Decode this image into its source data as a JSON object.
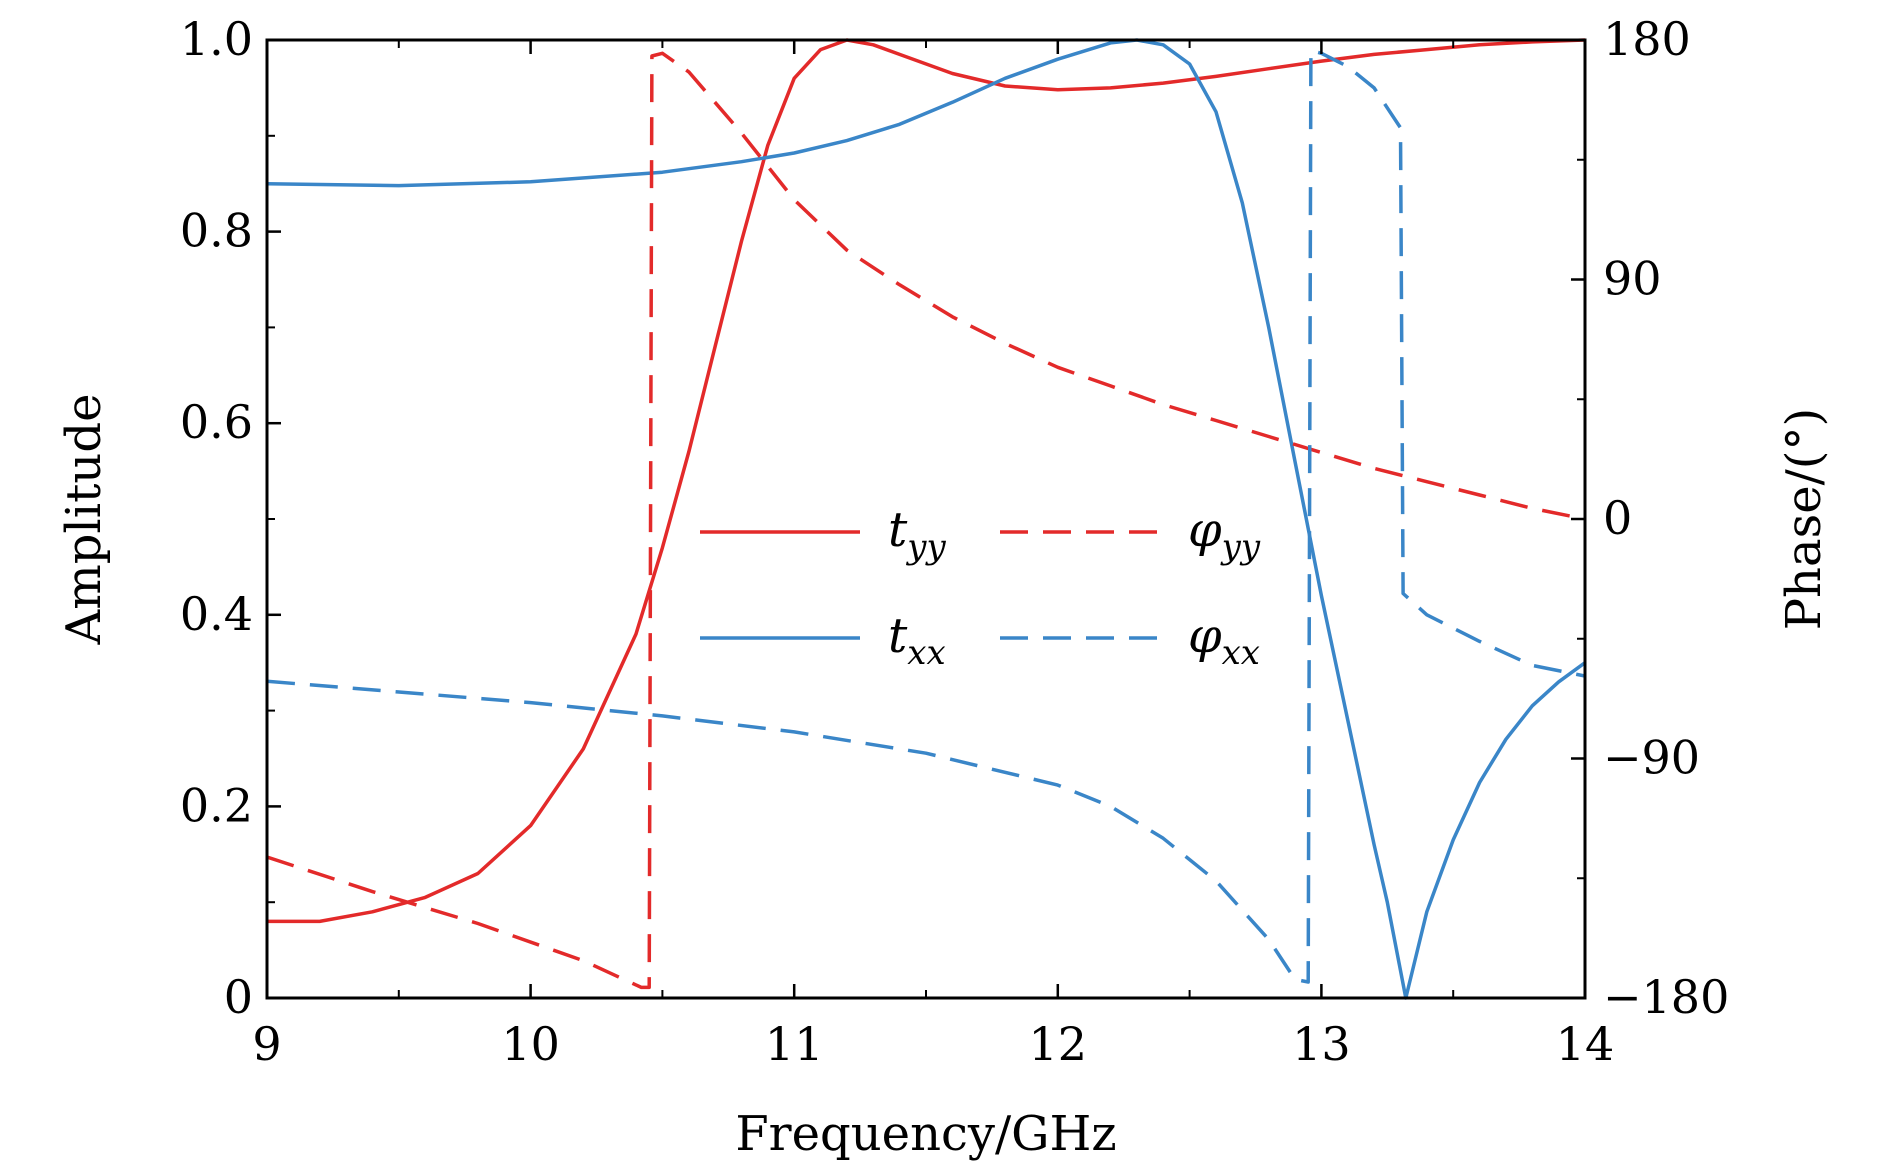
{
  "chart_data": {
    "type": "line",
    "title": "",
    "xlabel": "Frequency/GHz",
    "ylabel": "Amplitude",
    "y2label": "Phase/(°)",
    "xlim": [
      9,
      14
    ],
    "ylim": [
      0,
      1.0
    ],
    "y2lim": [
      -180,
      180
    ],
    "xticks": [
      9,
      10,
      11,
      12,
      13,
      14
    ],
    "xtick_labels": [
      "9",
      "10",
      "11",
      "12",
      "13",
      "14"
    ],
    "yticks": [
      0,
      0.2,
      0.4,
      0.6,
      0.8,
      1.0
    ],
    "ytick_labels": [
      "0",
      "0.2",
      "0.4",
      "0.6",
      "0.8",
      "1.0"
    ],
    "y2ticks": [
      -180,
      -90,
      0,
      90,
      180
    ],
    "y2tick_labels": [
      "−180",
      "−90",
      "0",
      "90",
      "180"
    ],
    "grid": false,
    "legend_position": "center",
    "colors": {
      "red": "#e32a2a",
      "blue": "#3a86c8"
    },
    "series": [
      {
        "name": "t_yy",
        "label_main": "t",
        "label_sub": "yy",
        "axis": "left",
        "style": "solid",
        "color": "#e32a2a",
        "x": [
          9.0,
          9.2,
          9.4,
          9.6,
          9.8,
          10.0,
          10.2,
          10.4,
          10.5,
          10.6,
          10.7,
          10.8,
          10.9,
          11.0,
          11.1,
          11.2,
          11.3,
          11.4,
          11.6,
          11.8,
          12.0,
          12.2,
          12.4,
          12.6,
          12.8,
          13.0,
          13.2,
          13.4,
          13.6,
          13.8,
          14.0
        ],
        "y": [
          0.08,
          0.08,
          0.09,
          0.105,
          0.13,
          0.18,
          0.26,
          0.38,
          0.47,
          0.57,
          0.68,
          0.79,
          0.89,
          0.96,
          0.99,
          1.0,
          0.995,
          0.985,
          0.965,
          0.952,
          0.948,
          0.95,
          0.955,
          0.962,
          0.97,
          0.978,
          0.985,
          0.99,
          0.995,
          0.998,
          1.0
        ]
      },
      {
        "name": "t_xx",
        "label_main": "t",
        "label_sub": "xx",
        "axis": "left",
        "style": "solid",
        "color": "#3a86c8",
        "x": [
          9.0,
          9.5,
          10.0,
          10.5,
          10.8,
          11.0,
          11.2,
          11.4,
          11.6,
          11.8,
          12.0,
          12.2,
          12.3,
          12.4,
          12.5,
          12.6,
          12.7,
          12.8,
          12.9,
          13.0,
          13.1,
          13.2,
          13.25,
          13.32,
          13.4,
          13.5,
          13.6,
          13.7,
          13.8,
          13.9,
          14.0
        ],
        "y": [
          0.85,
          0.848,
          0.852,
          0.862,
          0.873,
          0.882,
          0.895,
          0.912,
          0.935,
          0.96,
          0.98,
          0.997,
          1.0,
          0.995,
          0.975,
          0.925,
          0.83,
          0.7,
          0.56,
          0.42,
          0.29,
          0.16,
          0.1,
          0.0,
          0.09,
          0.165,
          0.225,
          0.27,
          0.305,
          0.33,
          0.35
        ]
      },
      {
        "name": "φ_yy",
        "label_main": "φ",
        "label_sub": "yy",
        "axis": "right",
        "style": "dashed",
        "color": "#e32a2a",
        "x": [
          9.0,
          9.4,
          9.8,
          10.2,
          10.42,
          10.45,
          10.46,
          10.5,
          10.6,
          10.8,
          11.0,
          11.2,
          11.4,
          11.6,
          11.8,
          12.0,
          12.2,
          12.4,
          12.6,
          12.8,
          13.0,
          13.2,
          13.4,
          13.6,
          13.8,
          14.0
        ],
        "y": [
          -127,
          -140,
          -152,
          -166,
          -176,
          -176,
          174,
          175,
          168,
          145,
          120,
          101,
          88,
          76,
          66,
          57,
          50,
          43,
          37,
          31,
          25,
          19,
          14,
          9,
          4,
          0
        ]
      },
      {
        "name": "φ_xx",
        "label_main": "φ",
        "label_sub": "xx",
        "axis": "right",
        "style": "dashed",
        "color": "#3a86c8",
        "x": [
          9.0,
          9.5,
          10.0,
          10.5,
          11.0,
          11.5,
          12.0,
          12.2,
          12.4,
          12.6,
          12.8,
          12.9,
          12.95,
          12.96,
          13.0,
          13.1,
          13.2,
          13.3,
          13.31,
          13.4,
          13.6,
          13.8,
          14.0
        ],
        "y": [
          -61,
          -65,
          -69,
          -74,
          -80,
          -88,
          -100,
          -108,
          -120,
          -136,
          -158,
          -173,
          -174,
          176,
          175,
          170,
          162,
          147,
          -28,
          -36,
          -46,
          -55,
          -59
        ]
      }
    ]
  }
}
